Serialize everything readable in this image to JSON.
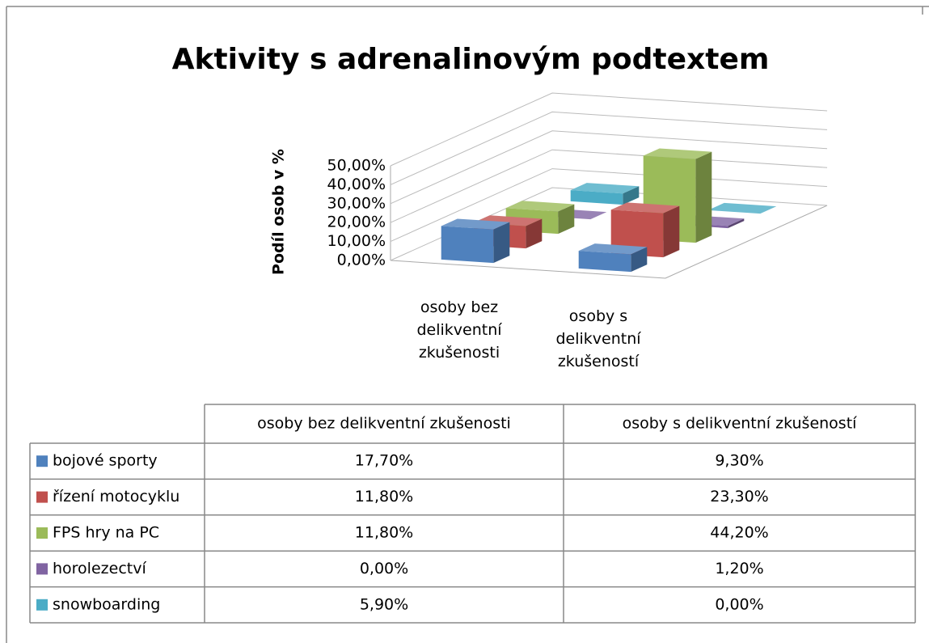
{
  "chart_data": {
    "type": "bar3d",
    "title": "Aktivity s adrenalinovým podtextem",
    "y_label": "Podíl osob v %",
    "categories": [
      "osoby bez delikventní zkušenosti",
      "osoby s delikventní zkušeností"
    ],
    "series": [
      {
        "name": "bojové sporty",
        "color": "#4f81bd",
        "values": [
          17.7,
          9.3
        ],
        "value_labels": [
          "17,70%",
          "9,30%"
        ]
      },
      {
        "name": "řízení motocyklu",
        "color": "#c0504d",
        "values": [
          11.8,
          23.3
        ],
        "value_labels": [
          "11,80%",
          "23,30%"
        ]
      },
      {
        "name": "FPS hry na PC",
        "color": "#9bbb59",
        "values": [
          11.8,
          44.2
        ],
        "value_labels": [
          "11,80%",
          "44,20%"
        ]
      },
      {
        "name": "horolezectví",
        "color": "#8064a2",
        "values": [
          0,
          1.2
        ],
        "value_labels": [
          "0,00%",
          "1,20%"
        ]
      },
      {
        "name": "snowboarding",
        "color": "#4bacc6",
        "values": [
          5.9,
          0
        ],
        "value_labels": [
          "5,90%",
          "0,00%"
        ]
      }
    ],
    "ylim": [
      0,
      50
    ],
    "yticks": [
      {
        "value": 0,
        "label": "0,00%"
      },
      {
        "value": 10,
        "label": "10,00%"
      },
      {
        "value": 20,
        "label": "20,00%"
      },
      {
        "value": 30,
        "label": "30,00%"
      },
      {
        "value": 40,
        "label": "40,00%"
      },
      {
        "value": 50,
        "label": "50,00%"
      }
    ],
    "grid": true
  }
}
